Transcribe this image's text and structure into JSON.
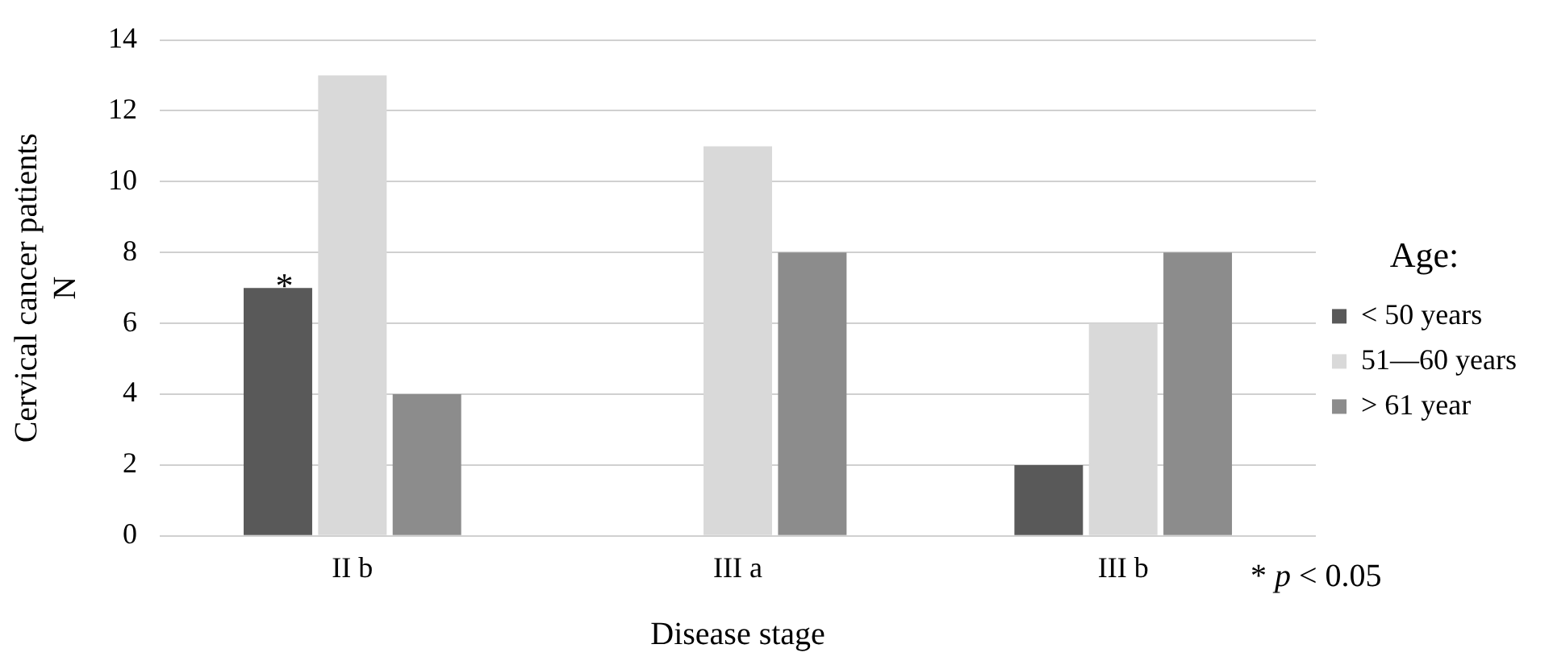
{
  "chart_data": {
    "type": "bar",
    "xlabel": "Disease stage",
    "ylabel": "Cervical cancer patients\nN",
    "legend_title": "Age:",
    "categories": [
      "II b",
      "III a",
      "III b"
    ],
    "series": [
      {
        "name": "< 50 years",
        "color": "#595959",
        "values": [
          7,
          0,
          2
        ]
      },
      {
        "name": "51—60 years",
        "color": "#d9d9d9",
        "values": [
          13,
          11,
          6
        ]
      },
      {
        "name": "> 61 year",
        "color": "#8c8c8c",
        "values": [
          4,
          8,
          8
        ]
      }
    ],
    "ylim": [
      0,
      14
    ],
    "yticks": [
      0,
      2,
      4,
      6,
      8,
      10,
      12,
      14
    ],
    "grid": "y",
    "legend": "right",
    "annotations": [
      "*",
      "* p < 0.05"
    ]
  }
}
